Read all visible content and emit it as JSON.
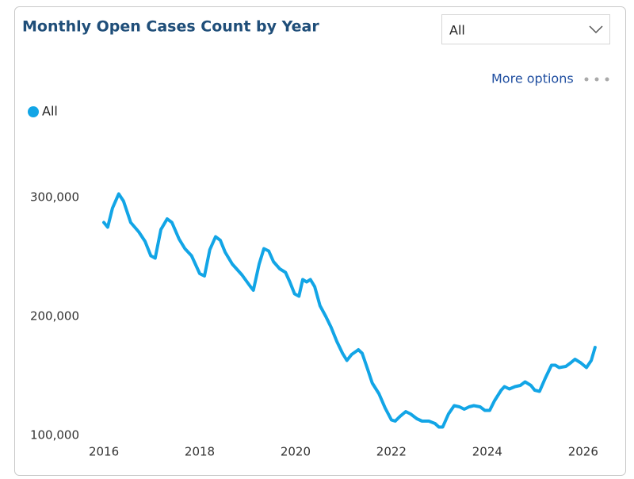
{
  "filter": {
    "selected": "All"
  },
  "menu": {
    "label": "More options"
  },
  "chart_data": {
    "type": "line",
    "title": "Monthly Open Cases Count by Year",
    "x": [
      2016.0,
      2016.08,
      2016.18,
      2016.31,
      2016.41,
      2016.56,
      2016.73,
      2016.86,
      2016.98,
      2017.07,
      2017.19,
      2017.32,
      2017.42,
      2017.57,
      2017.69,
      2017.83,
      2018.0,
      2018.1,
      2018.21,
      2018.33,
      2018.43,
      2018.53,
      2018.68,
      2018.88,
      2019.06,
      2019.12,
      2019.24,
      2019.34,
      2019.44,
      2019.54,
      2019.67,
      2019.79,
      2019.88,
      2019.98,
      2020.07,
      2020.15,
      2020.23,
      2020.31,
      2020.4,
      2020.51,
      2020.63,
      2020.74,
      2020.86,
      2020.98,
      2021.07,
      2021.17,
      2021.31,
      2021.39,
      2021.5,
      2021.6,
      2021.74,
      2021.87,
      2022.0,
      2022.08,
      2022.18,
      2022.3,
      2022.4,
      2022.53,
      2022.64,
      2022.78,
      2022.91,
      2022.99,
      2023.07,
      2023.19,
      2023.31,
      2023.42,
      2023.52,
      2023.62,
      2023.72,
      2023.85,
      2023.95,
      2024.05,
      2024.15,
      2024.29,
      2024.36,
      2024.46,
      2024.58,
      2024.69,
      2024.79,
      2024.91,
      2024.99,
      2025.09,
      2025.21,
      2025.34,
      2025.42,
      2025.5,
      2025.64,
      2025.74,
      2025.83,
      2025.95,
      2026.07,
      2026.17,
      2026.25
    ],
    "series": [
      {
        "name": "All",
        "color": "#12a5e6",
        "values": [
          279000,
          275000,
          291000,
          303000,
          297000,
          279000,
          271000,
          263000,
          251000,
          249000,
          273000,
          282000,
          279000,
          265000,
          257000,
          251000,
          236000,
          234000,
          256000,
          267000,
          264000,
          254000,
          244000,
          235000,
          225000,
          222000,
          244000,
          257000,
          255000,
          246000,
          240000,
          237000,
          229000,
          219000,
          217000,
          231000,
          229000,
          231000,
          225000,
          209000,
          200000,
          191000,
          179000,
          169000,
          163000,
          168000,
          172000,
          169000,
          156000,
          144000,
          135000,
          123000,
          113000,
          112000,
          116000,
          120000,
          118000,
          114000,
          112000,
          112000,
          110000,
          107000,
          107000,
          118000,
          125000,
          124000,
          122000,
          124000,
          125000,
          124000,
          121000,
          121000,
          129000,
          138000,
          141000,
          139000,
          141000,
          142000,
          145000,
          142000,
          138000,
          137000,
          148000,
          159000,
          159000,
          157000,
          158000,
          161000,
          164000,
          161000,
          157000,
          163000,
          174000
        ]
      }
    ],
    "xlim": [
      2015.9,
      2026.4
    ],
    "xticks": [
      2016,
      2018,
      2020,
      2022,
      2024,
      2026
    ],
    "ylim": [
      100000,
      340000
    ],
    "yticks": [
      {
        "value": 100000,
        "label": "100,000"
      },
      {
        "value": 200000,
        "label": "200,000"
      },
      {
        "value": 300000,
        "label": "300,000"
      }
    ],
    "grid": false,
    "legend": "top-left"
  }
}
